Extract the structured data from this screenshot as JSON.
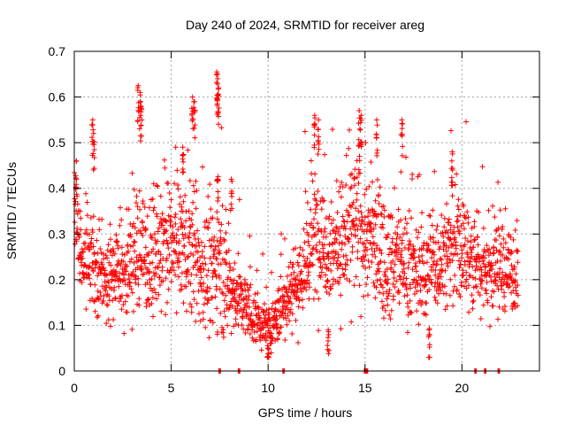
{
  "chart_data": {
    "type": "scatter",
    "title": "Day 240 of 2024, SRMTID for receiver areg",
    "xlabel": "GPS time / hours",
    "ylabel": "SRMTID / TECUs",
    "xlim": [
      0,
      24
    ],
    "ylim": [
      0,
      0.7
    ],
    "x_ticks": [
      0,
      5,
      10,
      15,
      20
    ],
    "x_tick_labels": [
      "0",
      "5",
      "10",
      "15",
      "20"
    ],
    "y_ticks": [
      0,
      0.1,
      0.2,
      0.3,
      0.4,
      0.5,
      0.6,
      0.7
    ],
    "y_tick_labels": [
      "0",
      "0.1",
      "0.2",
      "0.3",
      "0.4",
      "0.5",
      "0.6",
      "0.7"
    ],
    "grid": true,
    "marker": "+",
    "series": [
      {
        "name": "SRMTID",
        "color": "#ff0000",
        "profile": {
          "hours": [
            0.0,
            0.2,
            0.5,
            1.0,
            1.5,
            2.0,
            2.5,
            3.0,
            3.3,
            3.6,
            4.0,
            4.5,
            5.0,
            5.5,
            6.0,
            6.5,
            7.0,
            7.5,
            8.0,
            8.5,
            9.0,
            9.5,
            10.0,
            10.5,
            11.0,
            11.5,
            12.0,
            12.5,
            13.0,
            13.5,
            14.0,
            14.5,
            15.0,
            15.5,
            16.0,
            16.5,
            17.0,
            17.5,
            18.0,
            18.5,
            19.0,
            19.5,
            20.0,
            20.5,
            21.0,
            21.5,
            22.0,
            22.5,
            22.9
          ],
          "center": [
            0.35,
            0.3,
            0.24,
            0.24,
            0.22,
            0.22,
            0.21,
            0.23,
            0.28,
            0.26,
            0.24,
            0.26,
            0.27,
            0.28,
            0.26,
            0.22,
            0.22,
            0.24,
            0.18,
            0.16,
            0.13,
            0.11,
            0.09,
            0.12,
            0.17,
            0.19,
            0.24,
            0.3,
            0.28,
            0.27,
            0.29,
            0.32,
            0.3,
            0.28,
            0.25,
            0.24,
            0.24,
            0.22,
            0.21,
            0.24,
            0.25,
            0.27,
            0.27,
            0.24,
            0.23,
            0.22,
            0.23,
            0.22,
            0.22
          ],
          "spread": [
            0.06,
            0.05,
            0.04,
            0.06,
            0.05,
            0.05,
            0.05,
            0.07,
            0.08,
            0.07,
            0.06,
            0.06,
            0.07,
            0.07,
            0.07,
            0.06,
            0.07,
            0.07,
            0.05,
            0.04,
            0.03,
            0.03,
            0.02,
            0.03,
            0.04,
            0.05,
            0.06,
            0.07,
            0.06,
            0.06,
            0.07,
            0.08,
            0.08,
            0.07,
            0.06,
            0.06,
            0.06,
            0.05,
            0.06,
            0.06,
            0.06,
            0.07,
            0.06,
            0.06,
            0.05,
            0.05,
            0.06,
            0.05,
            0.05
          ]
        },
        "point_count": 2100,
        "peaks": [
          {
            "x": 0.1,
            "y": 0.46
          },
          {
            "x": 0.95,
            "y": 0.55
          },
          {
            "x": 1.0,
            "y": 0.52
          },
          {
            "x": 3.3,
            "y": 0.625
          },
          {
            "x": 3.4,
            "y": 0.61
          },
          {
            "x": 3.45,
            "y": 0.58
          },
          {
            "x": 5.6,
            "y": 0.49
          },
          {
            "x": 6.1,
            "y": 0.6
          },
          {
            "x": 6.2,
            "y": 0.59
          },
          {
            "x": 7.35,
            "y": 0.655
          },
          {
            "x": 7.4,
            "y": 0.64
          },
          {
            "x": 7.45,
            "y": 0.62
          },
          {
            "x": 12.4,
            "y": 0.56
          },
          {
            "x": 12.6,
            "y": 0.55
          },
          {
            "x": 14.7,
            "y": 0.57
          },
          {
            "x": 14.8,
            "y": 0.56
          },
          {
            "x": 15.6,
            "y": 0.55
          },
          {
            "x": 16.9,
            "y": 0.55
          },
          {
            "x": 19.5,
            "y": 0.48
          },
          {
            "x": 18.3,
            "y": 0.09
          },
          {
            "x": 13.1,
            "y": 0.09
          },
          {
            "x": 10.0,
            "y": 0.05
          },
          {
            "x": 8.1,
            "y": 0.42
          },
          {
            "x": 7.4,
            "y": 0.42
          }
        ],
        "zero_values_at_hours": [
          7.5,
          8.5,
          10.8,
          15.0,
          15.1,
          20.7,
          21.2,
          21.9
        ]
      }
    ]
  }
}
